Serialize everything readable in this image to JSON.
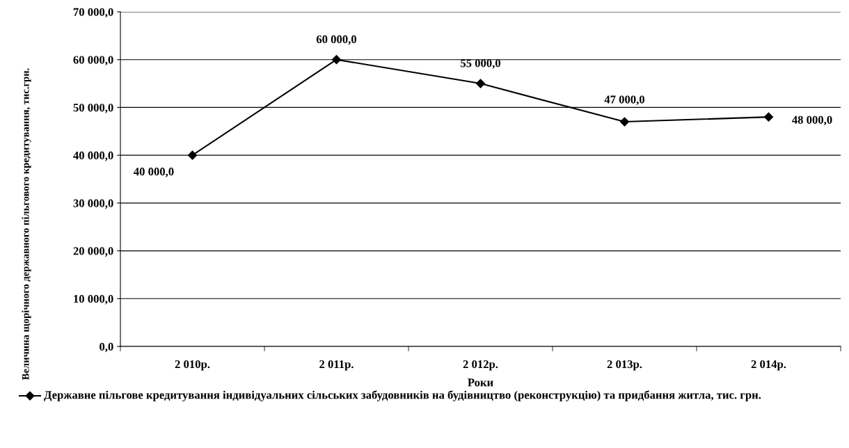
{
  "chart_data": {
    "type": "line",
    "xlabel": "Роки",
    "ylabel": "Величина щорічного державного пільгового кредитування, тис.грн.",
    "categories": [
      "2 010р.",
      "2 011р.",
      "2 012р.",
      "2 013р.",
      "2 014р."
    ],
    "series": [
      {
        "name": "Державне пільгове кредитування індивідуальних сільських забудовників на будівництво (реконструкцію) та придбання житла, тис. грн.",
        "color": "#000000",
        "values": [
          40000,
          60000,
          55000,
          47000,
          48000
        ],
        "value_labels": [
          "40 000,0",
          "60 000,0",
          "55 000,0",
          "47 000,0",
          "48 000,0"
        ]
      }
    ],
    "ylim": [
      0,
      70000
    ],
    "yticks": [
      {
        "value": 0,
        "label": "0,0"
      },
      {
        "value": 10000,
        "label": "10 000,0"
      },
      {
        "value": 20000,
        "label": "20 000,0"
      },
      {
        "value": 30000,
        "label": "30 000,0"
      },
      {
        "value": 40000,
        "label": "40 000,0"
      },
      {
        "value": 50000,
        "label": "50 000,0"
      },
      {
        "value": 60000,
        "label": "60 000,0"
      },
      {
        "value": 70000,
        "label": "70 000,0"
      }
    ],
    "grid": "y",
    "legend": "bottom",
    "marker": "diamond",
    "line_style": "solid"
  }
}
